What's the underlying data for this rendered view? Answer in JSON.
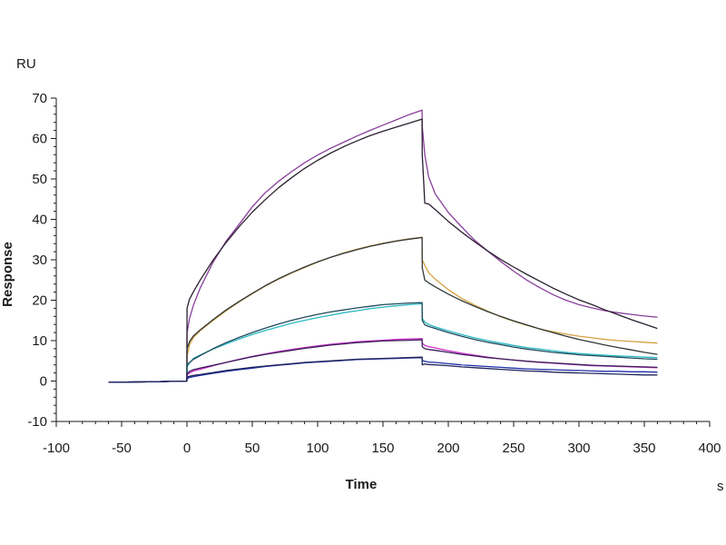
{
  "chart_data": {
    "type": "line",
    "xlabel": "Time",
    "ylabel": "Response",
    "x_unit": "s",
    "y_unit": "RU",
    "xlim": [
      -100,
      400
    ],
    "ylim": [
      -10,
      70
    ],
    "x_ticks": [
      -100,
      -50,
      0,
      50,
      100,
      150,
      200,
      250,
      300,
      350,
      400
    ],
    "y_ticks": [
      -10,
      0,
      10,
      20,
      30,
      40,
      50,
      60,
      70
    ],
    "grid": false,
    "legend": "none",
    "x": [
      -60,
      -30,
      -0.1,
      0.1,
      2,
      5,
      10,
      20,
      30,
      40,
      50,
      60,
      70,
      80,
      90,
      100,
      110,
      120,
      130,
      140,
      150,
      160,
      170,
      179.9,
      180.1,
      182,
      185,
      190,
      200,
      210,
      220,
      230,
      240,
      250,
      260,
      270,
      280,
      290,
      300,
      310,
      320,
      330,
      340,
      350,
      360
    ],
    "series": [
      {
        "color": "#8a3f9c",
        "values": [
          -0.3,
          -0.2,
          0,
          12.0,
          15.5,
          18.8,
          22.9,
          29.4,
          34.6,
          38.8,
          43.1,
          46.6,
          49.4,
          51.8,
          54.0,
          55.9,
          57.6,
          59.1,
          60.6,
          62.0,
          63.3,
          64.6,
          65.9,
          67.0,
          63.0,
          56.0,
          50.5,
          46.3,
          41.7,
          38.2,
          34.9,
          32.2,
          29.6,
          27.2,
          25.0,
          23.1,
          21.4,
          20.0,
          18.9,
          18.1,
          17.4,
          16.9,
          16.5,
          16.1,
          15.8
        ]
      },
      {
        "color": "#2a1f2e",
        "values": [
          -0.3,
          -0.2,
          0,
          18.0,
          20.3,
          22.1,
          24.9,
          29.9,
          34.3,
          38.2,
          41.8,
          44.9,
          47.8,
          50.3,
          52.6,
          54.6,
          56.4,
          58.0,
          59.4,
          60.7,
          61.8,
          62.8,
          63.8,
          64.8,
          56.0,
          44.0,
          43.8,
          42.4,
          39.5,
          36.9,
          34.5,
          32.2,
          30.1,
          28.2,
          26.4,
          24.7,
          23.0,
          21.5,
          20.1,
          18.9,
          17.6,
          16.4,
          15.2,
          14.1,
          13.0
        ]
      },
      {
        "color": "#d4a040",
        "values": [
          -0.3,
          -0.2,
          0,
          6.0,
          9.0,
          10.8,
          12.4,
          15.0,
          17.4,
          19.6,
          21.6,
          23.5,
          25.2,
          26.7,
          28.1,
          29.4,
          30.6,
          31.7,
          32.6,
          33.4,
          34.1,
          34.7,
          35.2,
          35.6,
          30.0,
          28.6,
          26.8,
          25.2,
          22.6,
          20.5,
          18.8,
          17.3,
          15.9,
          14.8,
          13.8,
          12.9,
          12.2,
          11.6,
          11.1,
          10.7,
          10.3,
          10.0,
          9.8,
          9.6,
          9.4
        ]
      },
      {
        "color": "#303838",
        "values": [
          -0.3,
          -0.2,
          0,
          8.0,
          9.8,
          11.2,
          12.6,
          15.2,
          17.6,
          19.7,
          21.7,
          23.6,
          25.3,
          26.8,
          28.2,
          29.5,
          30.6,
          31.6,
          32.5,
          33.3,
          34.0,
          34.6,
          35.1,
          35.5,
          28.0,
          25.0,
          24.3,
          23.3,
          21.5,
          19.9,
          18.5,
          17.2,
          16.0,
          14.9,
          13.9,
          12.9,
          12.0,
          11.1,
          10.3,
          9.6,
          8.9,
          8.3,
          7.7,
          7.1,
          6.6
        ]
      },
      {
        "color": "#2ab8c4",
        "values": [
          -0.3,
          -0.2,
          0,
          3.5,
          4.5,
          5.6,
          6.4,
          7.9,
          9.2,
          10.4,
          11.5,
          12.5,
          13.4,
          14.3,
          15.0,
          15.7,
          16.3,
          16.9,
          17.4,
          17.9,
          18.3,
          18.6,
          18.9,
          19.1,
          15.5,
          14.6,
          14.0,
          13.4,
          12.4,
          11.5,
          10.7,
          10.0,
          9.4,
          8.8,
          8.3,
          7.9,
          7.5,
          7.1,
          6.8,
          6.6,
          6.4,
          6.2,
          6.1,
          5.9,
          5.8
        ]
      },
      {
        "color": "#1e4b5c",
        "values": [
          -0.3,
          -0.2,
          0,
          4.0,
          4.6,
          5.4,
          6.3,
          8.0,
          9.5,
          10.8,
          12.0,
          13.1,
          14.1,
          15.0,
          15.8,
          16.5,
          17.1,
          17.6,
          18.1,
          18.5,
          18.9,
          19.1,
          19.3,
          19.4,
          15.0,
          13.9,
          13.5,
          13.0,
          12.0,
          11.1,
          10.3,
          9.6,
          9.0,
          8.4,
          7.9,
          7.5,
          7.1,
          6.8,
          6.5,
          6.3,
          6.1,
          5.9,
          5.7,
          5.5,
          5.4
        ]
      },
      {
        "color": "#c82fc8",
        "values": [
          -0.3,
          -0.2,
          0,
          1.5,
          2.0,
          2.5,
          2.9,
          3.8,
          4.6,
          5.4,
          6.1,
          6.7,
          7.3,
          7.8,
          8.3,
          8.7,
          9.1,
          9.4,
          9.7,
          9.9,
          10.1,
          10.3,
          10.4,
          10.5,
          9.4,
          8.8,
          8.5,
          8.2,
          7.5,
          6.9,
          6.4,
          5.9,
          5.5,
          5.2,
          4.9,
          4.6,
          4.4,
          4.2,
          4.0,
          3.8,
          3.7,
          3.6,
          3.5,
          3.4,
          3.3
        ]
      },
      {
        "color": "#3a1f58",
        "values": [
          -0.3,
          -0.2,
          0,
          1.8,
          2.4,
          2.8,
          3.2,
          3.9,
          4.6,
          5.3,
          6.0,
          6.6,
          7.1,
          7.6,
          8.1,
          8.5,
          8.9,
          9.2,
          9.5,
          9.7,
          9.9,
          10.0,
          10.1,
          10.2,
          8.5,
          8.0,
          7.8,
          7.6,
          7.1,
          6.6,
          6.2,
          5.8,
          5.5,
          5.2,
          4.9,
          4.7,
          4.5,
          4.3,
          4.1,
          3.9,
          3.8,
          3.7,
          3.6,
          3.5,
          3.4
        ]
      },
      {
        "color": "#1c2fa8",
        "values": [
          -0.3,
          -0.2,
          0,
          0.6,
          0.9,
          1.1,
          1.4,
          1.9,
          2.4,
          2.8,
          3.2,
          3.6,
          3.9,
          4.2,
          4.5,
          4.7,
          4.9,
          5.1,
          5.3,
          5.4,
          5.5,
          5.6,
          5.7,
          5.8,
          5.1,
          4.9,
          4.7,
          4.6,
          4.3,
          4.0,
          3.8,
          3.6,
          3.4,
          3.2,
          3.0,
          2.9,
          2.8,
          2.7,
          2.6,
          2.5,
          2.4,
          2.4,
          2.3,
          2.3,
          2.2
        ]
      },
      {
        "color": "#20245a",
        "values": [
          -0.3,
          -0.2,
          0,
          1.0,
          1.2,
          1.4,
          1.6,
          2.1,
          2.6,
          3.0,
          3.4,
          3.7,
          4.0,
          4.3,
          4.6,
          4.8,
          5.0,
          5.2,
          5.4,
          5.5,
          5.6,
          5.7,
          5.8,
          5.9,
          4.0,
          4.2,
          4.1,
          4.0,
          3.8,
          3.5,
          3.3,
          3.1,
          2.9,
          2.7,
          2.5,
          2.4,
          2.2,
          2.1,
          2.0,
          1.9,
          1.8,
          1.7,
          1.6,
          1.5,
          1.5
        ]
      }
    ]
  }
}
